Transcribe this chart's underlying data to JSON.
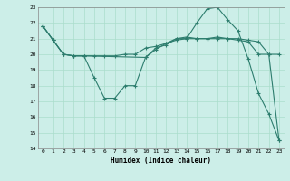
{
  "bg_color": "#cceee8",
  "line_color": "#2d7d6e",
  "grid_color": "#aaddcc",
  "xlabel": "Humidex (Indice chaleur)",
  "ylim": [
    14,
    23
  ],
  "xlim": [
    -0.5,
    23.5
  ],
  "yticks": [
    14,
    15,
    16,
    17,
    18,
    19,
    20,
    21,
    22,
    23
  ],
  "xticks": [
    0,
    1,
    2,
    3,
    4,
    5,
    6,
    7,
    8,
    9,
    10,
    11,
    12,
    13,
    14,
    15,
    16,
    17,
    18,
    19,
    20,
    21,
    22,
    23
  ],
  "line1_x": [
    0,
    1,
    2,
    3,
    4,
    5,
    6,
    7,
    8,
    9,
    10,
    11,
    12,
    13,
    14,
    15,
    16,
    17,
    18,
    19,
    20,
    21,
    22,
    23
  ],
  "line1_y": [
    21.8,
    20.9,
    20.0,
    19.9,
    19.9,
    19.9,
    19.9,
    19.9,
    20.0,
    20.0,
    20.4,
    20.5,
    20.7,
    21.0,
    21.1,
    21.0,
    21.0,
    21.1,
    21.0,
    20.9,
    20.8,
    20.0,
    20.0,
    20.0
  ],
  "line2_x": [
    0,
    1,
    2,
    3,
    4,
    5,
    6,
    7,
    8,
    9,
    10,
    11,
    12,
    13,
    14,
    15,
    16,
    17,
    18,
    19,
    20,
    21,
    22,
    23
  ],
  "line2_y": [
    21.8,
    20.9,
    20.0,
    19.9,
    19.9,
    18.5,
    17.2,
    17.2,
    18.0,
    18.0,
    19.8,
    20.4,
    20.6,
    21.0,
    21.0,
    22.0,
    22.9,
    23.0,
    22.2,
    21.5,
    19.7,
    17.5,
    16.2,
    14.5
  ],
  "line3_x": [
    0,
    1,
    2,
    3,
    4,
    10,
    11,
    12,
    13,
    14,
    15,
    16,
    17,
    18,
    19,
    20,
    21,
    22,
    23
  ],
  "line3_y": [
    21.8,
    20.9,
    20.0,
    19.9,
    19.9,
    19.8,
    20.3,
    20.7,
    20.9,
    21.0,
    21.0,
    21.0,
    21.0,
    21.0,
    21.0,
    20.9,
    20.8,
    20.0,
    14.5
  ]
}
